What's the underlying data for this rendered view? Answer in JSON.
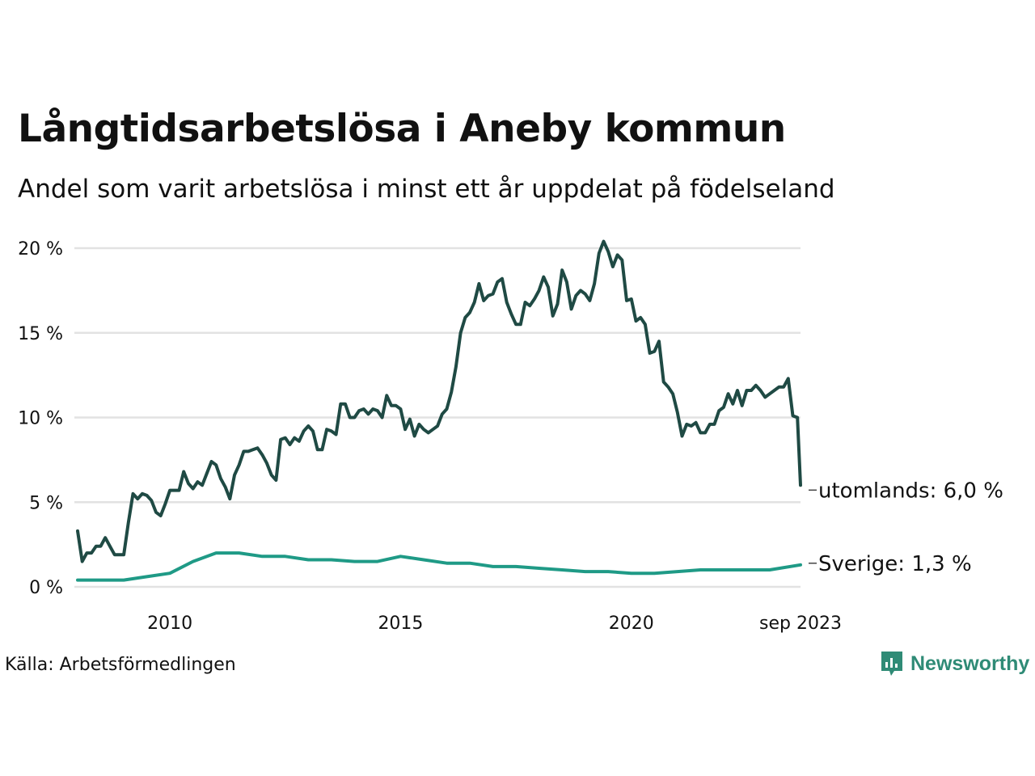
{
  "header": {
    "title": "Långtidsarbetslösa i Aneby kommun",
    "subtitle": "Andel som varit arbetslösa i minst ett år uppdelat på födelseland"
  },
  "footer": {
    "source": "Källa: Arbetsförmedlingen",
    "brand": "Newsworthy"
  },
  "colors": {
    "utomlands": "#1f4a44",
    "sverige": "#1f9a86",
    "grid": "#e2e2e2",
    "brand": "#2f8b76"
  },
  "chart_data": {
    "type": "line",
    "title": "Långtidsarbetslösa i Aneby kommun",
    "subtitle": "Andel som varit arbetslösa i minst ett år uppdelat på födelseland",
    "xlabel": "",
    "ylabel": "",
    "xlim": [
      2008.0,
      2023.667
    ],
    "ylim": [
      0,
      20
    ],
    "yticks": [
      0,
      5,
      10,
      15,
      20
    ],
    "ytick_labels": [
      "0 %",
      "5 %",
      "10 %",
      "15 %",
      "20 %"
    ],
    "xticks": [
      2010,
      2015,
      2020,
      2023.667
    ],
    "xtick_labels": [
      "2010",
      "2015",
      "2020",
      "sep 2023"
    ],
    "grid": true,
    "legend": "end-of-line labels",
    "series": [
      {
        "name": "utomlands",
        "end_label": "utomlands: 6,0 %",
        "points": [
          [
            2008.0,
            3.3
          ],
          [
            2008.1,
            1.5
          ],
          [
            2008.2,
            2.0
          ],
          [
            2008.3,
            2.0
          ],
          [
            2008.4,
            2.4
          ],
          [
            2008.5,
            2.4
          ],
          [
            2008.6,
            2.9
          ],
          [
            2008.7,
            2.4
          ],
          [
            2008.8,
            1.9
          ],
          [
            2008.9,
            1.9
          ],
          [
            2009.0,
            1.9
          ],
          [
            2009.1,
            3.8
          ],
          [
            2009.2,
            5.5
          ],
          [
            2009.3,
            5.2
          ],
          [
            2009.4,
            5.5
          ],
          [
            2009.5,
            5.4
          ],
          [
            2009.6,
            5.1
          ],
          [
            2009.7,
            4.4
          ],
          [
            2009.8,
            4.2
          ],
          [
            2009.9,
            4.9
          ],
          [
            2010.0,
            5.7
          ],
          [
            2010.1,
            5.7
          ],
          [
            2010.2,
            5.7
          ],
          [
            2010.3,
            6.8
          ],
          [
            2010.4,
            6.1
          ],
          [
            2010.5,
            5.8
          ],
          [
            2010.6,
            6.2
          ],
          [
            2010.7,
            6.0
          ],
          [
            2010.8,
            6.7
          ],
          [
            2010.9,
            7.4
          ],
          [
            2011.0,
            7.2
          ],
          [
            2011.1,
            6.4
          ],
          [
            2011.2,
            5.9
          ],
          [
            2011.3,
            5.2
          ],
          [
            2011.4,
            6.6
          ],
          [
            2011.5,
            7.2
          ],
          [
            2011.6,
            8.0
          ],
          [
            2011.7,
            8.0
          ],
          [
            2011.8,
            8.1
          ],
          [
            2011.9,
            8.2
          ],
          [
            2012.0,
            7.8
          ],
          [
            2012.1,
            7.3
          ],
          [
            2012.2,
            6.6
          ],
          [
            2012.3,
            6.3
          ],
          [
            2012.4,
            8.7
          ],
          [
            2012.5,
            8.8
          ],
          [
            2012.6,
            8.4
          ],
          [
            2012.7,
            8.8
          ],
          [
            2012.8,
            8.6
          ],
          [
            2012.9,
            9.2
          ],
          [
            2013.0,
            9.5
          ],
          [
            2013.1,
            9.2
          ],
          [
            2013.2,
            8.1
          ],
          [
            2013.3,
            8.1
          ],
          [
            2013.4,
            9.3
          ],
          [
            2013.5,
            9.2
          ],
          [
            2013.6,
            9.0
          ],
          [
            2013.7,
            10.8
          ],
          [
            2013.8,
            10.8
          ],
          [
            2013.9,
            10.0
          ],
          [
            2014.0,
            10.0
          ],
          [
            2014.1,
            10.4
          ],
          [
            2014.2,
            10.5
          ],
          [
            2014.3,
            10.2
          ],
          [
            2014.4,
            10.5
          ],
          [
            2014.5,
            10.4
          ],
          [
            2014.6,
            10.0
          ],
          [
            2014.7,
            11.3
          ],
          [
            2014.8,
            10.7
          ],
          [
            2014.9,
            10.7
          ],
          [
            2015.0,
            10.5
          ],
          [
            2015.1,
            9.3
          ],
          [
            2015.2,
            9.9
          ],
          [
            2015.3,
            8.9
          ],
          [
            2015.4,
            9.6
          ],
          [
            2015.5,
            9.3
          ],
          [
            2015.6,
            9.1
          ],
          [
            2015.7,
            9.3
          ],
          [
            2015.8,
            9.5
          ],
          [
            2015.9,
            10.2
          ],
          [
            2016.0,
            10.5
          ],
          [
            2016.1,
            11.5
          ],
          [
            2016.2,
            13.0
          ],
          [
            2016.3,
            15.0
          ],
          [
            2016.4,
            15.9
          ],
          [
            2016.5,
            16.2
          ],
          [
            2016.6,
            16.8
          ],
          [
            2016.7,
            17.9
          ],
          [
            2016.8,
            16.9
          ],
          [
            2016.9,
            17.2
          ],
          [
            2017.0,
            17.3
          ],
          [
            2017.1,
            18.0
          ],
          [
            2017.2,
            18.2
          ],
          [
            2017.3,
            16.8
          ],
          [
            2017.4,
            16.1
          ],
          [
            2017.5,
            15.5
          ],
          [
            2017.6,
            15.5
          ],
          [
            2017.7,
            16.8
          ],
          [
            2017.8,
            16.6
          ],
          [
            2017.9,
            17.0
          ],
          [
            2018.0,
            17.5
          ],
          [
            2018.1,
            18.3
          ],
          [
            2018.2,
            17.7
          ],
          [
            2018.3,
            16.0
          ],
          [
            2018.4,
            16.7
          ],
          [
            2018.5,
            18.7
          ],
          [
            2018.6,
            18.0
          ],
          [
            2018.7,
            16.4
          ],
          [
            2018.8,
            17.2
          ],
          [
            2018.9,
            17.5
          ],
          [
            2019.0,
            17.3
          ],
          [
            2019.1,
            16.9
          ],
          [
            2019.2,
            17.9
          ],
          [
            2019.3,
            19.7
          ],
          [
            2019.4,
            20.4
          ],
          [
            2019.5,
            19.8
          ],
          [
            2019.6,
            18.9
          ],
          [
            2019.7,
            19.6
          ],
          [
            2019.8,
            19.3
          ],
          [
            2019.9,
            16.9
          ],
          [
            2020.0,
            17.0
          ],
          [
            2020.1,
            15.7
          ],
          [
            2020.2,
            15.9
          ],
          [
            2020.3,
            15.5
          ],
          [
            2020.4,
            13.8
          ],
          [
            2020.5,
            13.9
          ],
          [
            2020.6,
            14.5
          ],
          [
            2020.7,
            12.1
          ],
          [
            2020.8,
            11.8
          ],
          [
            2020.9,
            11.4
          ],
          [
            2021.0,
            10.3
          ],
          [
            2021.1,
            8.9
          ],
          [
            2021.2,
            9.6
          ],
          [
            2021.3,
            9.5
          ],
          [
            2021.4,
            9.7
          ],
          [
            2021.5,
            9.1
          ],
          [
            2021.6,
            9.1
          ],
          [
            2021.7,
            9.6
          ],
          [
            2021.8,
            9.6
          ],
          [
            2021.9,
            10.4
          ],
          [
            2022.0,
            10.6
          ],
          [
            2022.1,
            11.4
          ],
          [
            2022.2,
            10.8
          ],
          [
            2022.3,
            11.6
          ],
          [
            2022.4,
            10.7
          ],
          [
            2022.5,
            11.6
          ],
          [
            2022.6,
            11.6
          ],
          [
            2022.7,
            11.9
          ],
          [
            2022.8,
            11.6
          ],
          [
            2022.9,
            11.2
          ],
          [
            2023.0,
            11.4
          ],
          [
            2023.1,
            11.6
          ],
          [
            2023.2,
            11.8
          ],
          [
            2023.3,
            11.8
          ],
          [
            2023.4,
            12.3
          ],
          [
            2023.5,
            10.1
          ],
          [
            2023.6,
            10.0
          ],
          [
            2023.667,
            6.0
          ]
        ]
      },
      {
        "name": "Sverige",
        "end_label": "Sverige: 1,3 %",
        "points": [
          [
            2008.0,
            0.4
          ],
          [
            2008.5,
            0.4
          ],
          [
            2009.0,
            0.4
          ],
          [
            2009.5,
            0.6
          ],
          [
            2010.0,
            0.8
          ],
          [
            2010.5,
            1.5
          ],
          [
            2011.0,
            2.0
          ],
          [
            2011.5,
            2.0
          ],
          [
            2012.0,
            1.8
          ],
          [
            2012.5,
            1.8
          ],
          [
            2013.0,
            1.6
          ],
          [
            2013.5,
            1.6
          ],
          [
            2014.0,
            1.5
          ],
          [
            2014.5,
            1.5
          ],
          [
            2015.0,
            1.8
          ],
          [
            2015.5,
            1.6
          ],
          [
            2016.0,
            1.4
          ],
          [
            2016.5,
            1.4
          ],
          [
            2017.0,
            1.2
          ],
          [
            2017.5,
            1.2
          ],
          [
            2018.0,
            1.1
          ],
          [
            2018.5,
            1.0
          ],
          [
            2019.0,
            0.9
          ],
          [
            2019.5,
            0.9
          ],
          [
            2020.0,
            0.8
          ],
          [
            2020.5,
            0.8
          ],
          [
            2021.0,
            0.9
          ],
          [
            2021.5,
            1.0
          ],
          [
            2022.0,
            1.0
          ],
          [
            2022.5,
            1.0
          ],
          [
            2023.0,
            1.0
          ],
          [
            2023.667,
            1.3
          ]
        ]
      }
    ]
  }
}
